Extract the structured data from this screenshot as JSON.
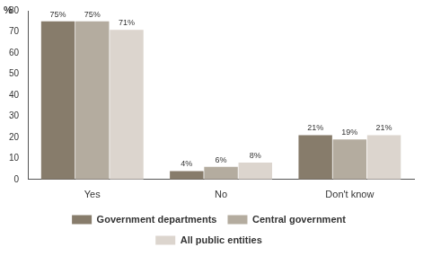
{
  "chart_data": {
    "type": "bar",
    "y_label": "%",
    "categories": [
      "Yes",
      "No",
      "Don't know"
    ],
    "series": [
      {
        "name": "Government departments",
        "color": "#877c6b",
        "values": [
          75,
          4,
          21
        ],
        "value_labels": [
          "75%",
          "4%",
          "21%"
        ]
      },
      {
        "name": "Central government",
        "color": "#b4ac9f",
        "values": [
          75,
          6,
          19
        ],
        "value_labels": [
          "75%",
          "6%",
          "19%"
        ]
      },
      {
        "name": "All public entities",
        "color": "#dcd5ce",
        "values": [
          71,
          8,
          21
        ],
        "value_labels": [
          "71%",
          "8%",
          "21%"
        ]
      }
    ],
    "ylim": [
      0,
      80
    ],
    "yticks": [
      0,
      10,
      20,
      30,
      40,
      50,
      60,
      70,
      80
    ],
    "grid": false,
    "legend": "bottom",
    "data_labels": true
  }
}
